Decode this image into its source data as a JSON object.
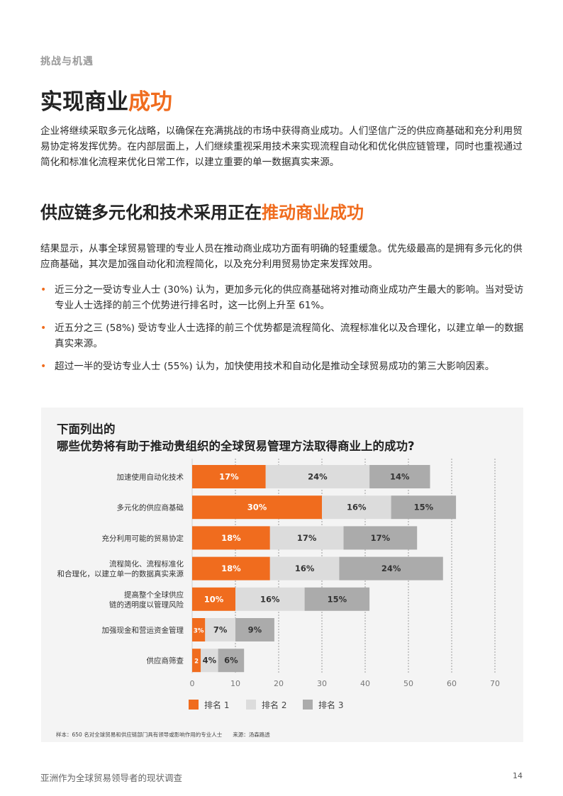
{
  "section_label": "挑战与机遇",
  "heading1": {
    "main": "实现商业",
    "accent": "成功"
  },
  "intro": "企业将继续采取多元化战略，以确保在充满挑战的市场中获得商业成功。人们坚信广泛的供应商基础和充分利用贸易协定将发挥优势。在内部层面上，人们继续重视采用技术来实现流程自动化和优化供应链管理，同时也重视通过简化和标准化流程来优化日常工作，以建立重要的单一数据真实来源。",
  "heading2": {
    "main": "供应链多元化和技术采用正在",
    "accent": "推动商业成功"
  },
  "paragraph2": "结果显示，从事全球贸易管理的专业人员在推动商业成功方面有明确的轻重缓急。优先级最高的是拥有多元化的供应商基础，其次是加强自动化和流程简化，以及充分利用贸易协定来发挥效用。",
  "bullets": [
    "近三分之一受访专业人士 (30%) 认为，更加多元化的供应商基础将对推动商业成功产生最大的影响。当对受访专业人士选择的前三个优势进行排名时，这一比例上升至 61%。",
    "近五分之三 (58%) 受访专业人士选择的前三个优势都是流程简化、流程标准化以及合理化，以建立单一的数据真实来源。",
    "超过一半的受访专业人士 (55%) 认为，加快使用技术和自动化是推动全球贸易成功的第三大影响因素。"
  ],
  "chart_data": {
    "type": "bar",
    "orientation": "horizontal",
    "stacked": true,
    "title": "下面列出的哪些优势将有助于推动贵组织的全球贸易管理方法取得商业上的成功?",
    "categories": [
      "加速使用自动化技术",
      "多元化的供应商基础",
      "充分利用可能的贸易协定",
      "流程简化、流程标准化和合理化，以建立单一的数据真实来源",
      "提高整个全球供应链的透明度以管理风险",
      "加强现金和营运资金管理",
      "供应商筛查"
    ],
    "series": [
      {
        "name": "排名 1",
        "color": "#f06c1e",
        "values": [
          17,
          30,
          18,
          18,
          10,
          3,
          2
        ],
        "labels": [
          "17%",
          "30%",
          "18%",
          "18%",
          "10%",
          "3%",
          "2"
        ]
      },
      {
        "name": "排名 2",
        "color": "#dcdcdc",
        "values": [
          24,
          16,
          17,
          16,
          16,
          7,
          4
        ],
        "labels": [
          "24%",
          "16%",
          "17%",
          "16%",
          "16%",
          "7%",
          "4%"
        ]
      },
      {
        "name": "排名 3",
        "color": "#ababab",
        "values": [
          14,
          15,
          17,
          24,
          15,
          9,
          6
        ],
        "labels": [
          "14%",
          "15%",
          "17%",
          "24%",
          "15%",
          "9%",
          "6%"
        ]
      }
    ],
    "xticks": [
      "0",
      "10",
      "20",
      "30",
      "40",
      "50",
      "60",
      "70"
    ],
    "xlim": [
      0,
      70
    ],
    "grid": "vertical dashed",
    "legend_position": "bottom"
  },
  "chart_note": "样本：650 名对全球贸易和供应链部门具有领导或影响作用的专业人士　　来源：汤森路透",
  "footer": {
    "left": "亚洲作为全球贸易领导者的现状调查",
    "page": "14"
  }
}
